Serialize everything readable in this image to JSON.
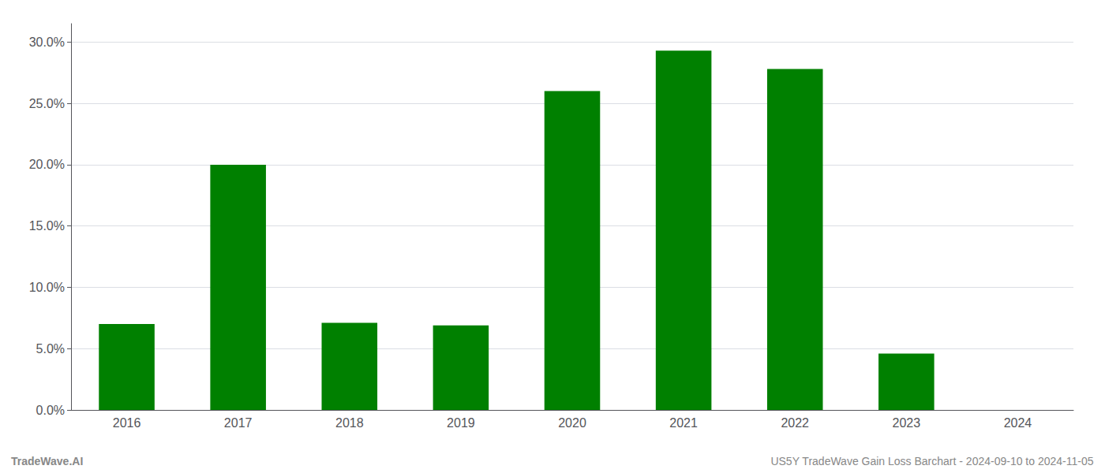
{
  "chart_data": {
    "type": "bar",
    "categories": [
      "2016",
      "2017",
      "2018",
      "2019",
      "2020",
      "2021",
      "2022",
      "2023",
      "2024"
    ],
    "values": [
      0.07,
      0.2,
      0.071,
      0.069,
      0.26,
      0.293,
      0.278,
      0.046,
      0.0
    ],
    "color": "#008000",
    "ylim": [
      0,
      0.315
    ],
    "yticks": [
      {
        "value": 0.0,
        "label": "0.0%"
      },
      {
        "value": 0.05,
        "label": "5.0%"
      },
      {
        "value": 0.1,
        "label": "10.0%"
      },
      {
        "value": 0.15,
        "label": "15.0%"
      },
      {
        "value": 0.2,
        "label": "20.0%"
      },
      {
        "value": 0.25,
        "label": "25.0%"
      },
      {
        "value": 0.3,
        "label": "30.0%"
      }
    ],
    "grid": true,
    "annotations": [
      "TradeWave.AI",
      "US5Y TradeWave Gain Loss Barchart - 2024-09-10 to 2024-11-05"
    ]
  }
}
